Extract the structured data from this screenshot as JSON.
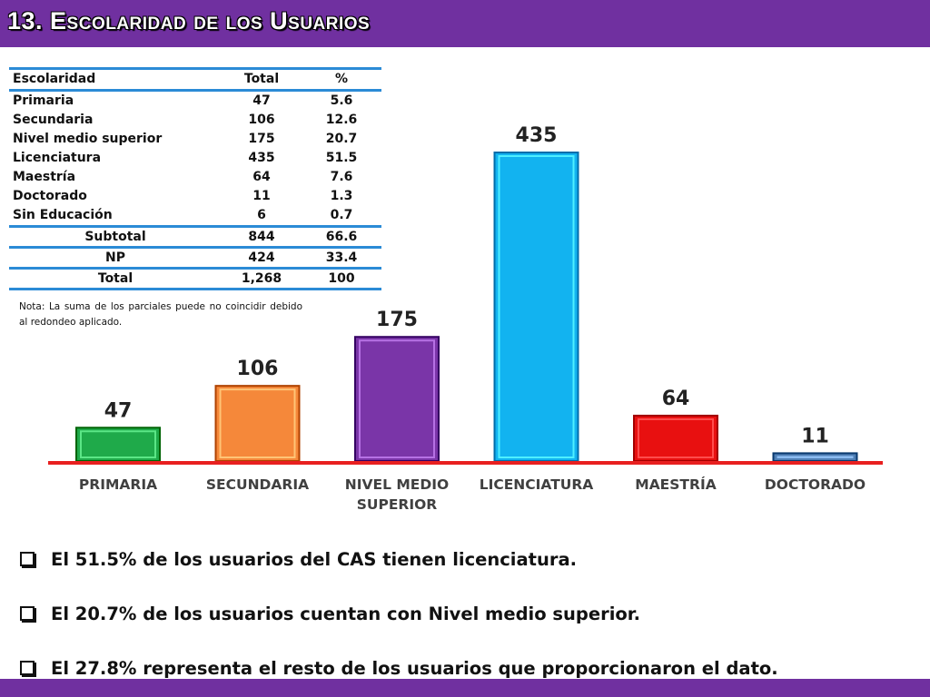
{
  "header": {
    "title": "13. Escolaridad de los Usuarios"
  },
  "table": {
    "headers": [
      "Escolaridad",
      "Total",
      "%"
    ],
    "rows": [
      [
        "Primaria",
        "47",
        "5.6"
      ],
      [
        "Secundaria",
        "106",
        "12.6"
      ],
      [
        "Nivel medio superior",
        "175",
        "20.7"
      ],
      [
        "Licenciatura",
        "435",
        "51.5"
      ],
      [
        "Maestría",
        "64",
        "7.6"
      ],
      [
        "Doctorado",
        "11",
        "1.3"
      ],
      [
        "Sin Educación",
        "6",
        "0.7"
      ]
    ],
    "summary": [
      [
        "Subtotal",
        "844",
        "66.6"
      ],
      [
        "NP",
        "424",
        "33.4"
      ],
      [
        "Total",
        "1,268",
        "100"
      ]
    ]
  },
  "note": "Nota: La suma de los parciales puede no coincidir debido al redondeo aplicado.",
  "chart_data": {
    "type": "bar",
    "categories": [
      [
        "PRIMARIA"
      ],
      [
        "SECUNDARIA"
      ],
      [
        "NIVEL MEDIO",
        "SUPERIOR"
      ],
      [
        "LICENCIATURA"
      ],
      [
        "MAESTRÍA"
      ],
      [
        "DOCTORADO"
      ]
    ],
    "values": [
      47,
      106,
      175,
      435,
      64,
      11
    ],
    "colors": [
      "#1faa4a",
      "#f5883a",
      "#7a35a8",
      "#12b3f0",
      "#e81010",
      "#4f7fb5"
    ],
    "axis_color": "#e82020",
    "title": "",
    "xlabel": "",
    "ylabel": "",
    "ylim": [
      0,
      435
    ],
    "grid": false
  },
  "bullets": [
    "El 51.5% de los usuarios del CAS tienen licenciatura.",
    "El 20.7% de los usuarios cuentan con Nivel medio superior.",
    "El  27.8% representa el resto de los usuarios que proporcionaron el dato."
  ]
}
